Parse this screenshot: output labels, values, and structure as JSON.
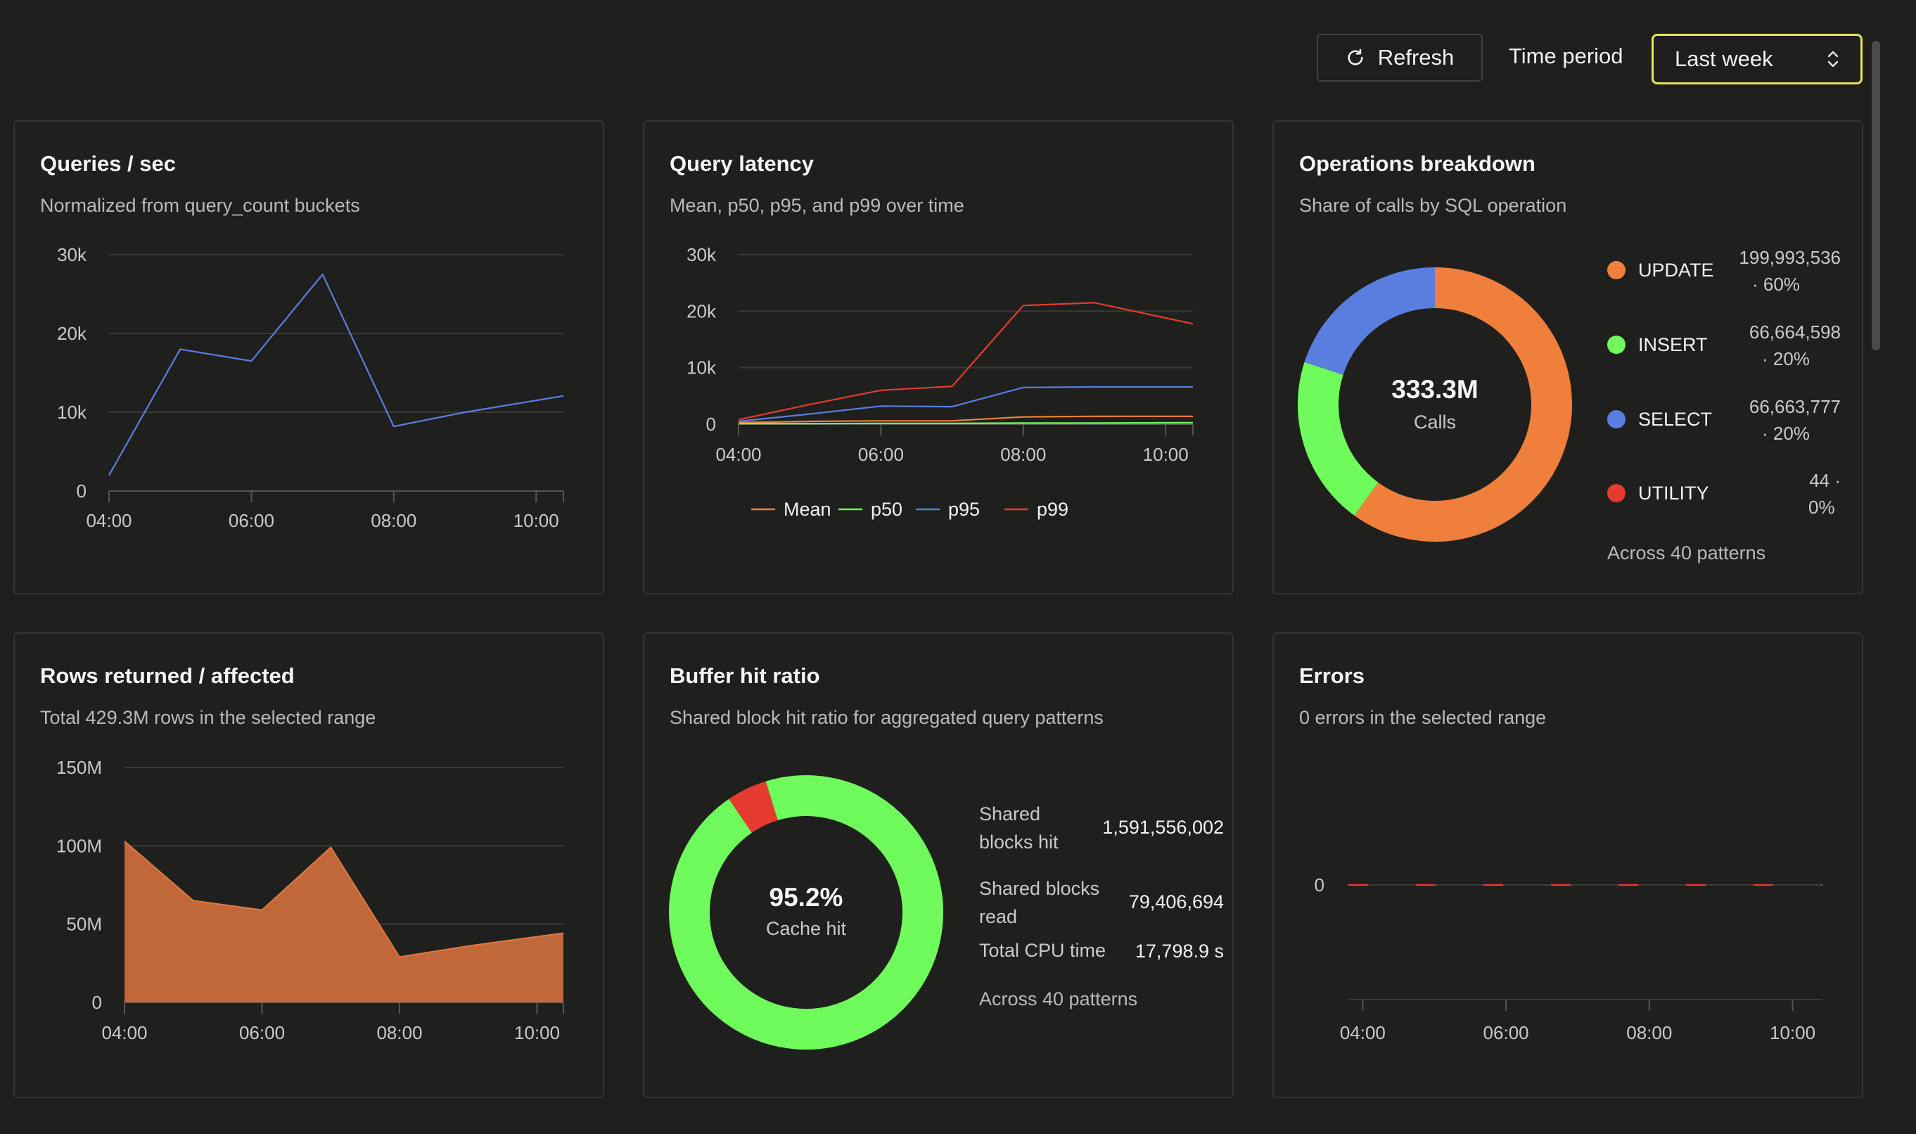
{
  "toolbar": {
    "refresh_label": "Refresh",
    "time_period_label": "Time period",
    "time_period_value": "Last week"
  },
  "colors": {
    "background": "#1e1f1c",
    "accent_focus": "#e8e25c",
    "blue": "#5a7de0",
    "orange": "#ef7f3b",
    "green": "#6ffb5b",
    "red": "#e53b2e"
  },
  "cards": {
    "queries": {
      "title": "Queries / sec",
      "subtitle": "Normalized from query_count buckets"
    },
    "latency": {
      "title": "Query latency",
      "subtitle": "Mean, p50, p95, and p99 over time"
    },
    "operations": {
      "title": "Operations breakdown",
      "subtitle": "Share of calls by SQL operation",
      "center_value": "333.3M",
      "center_label": "Calls",
      "items": [
        {
          "label": "UPDATE",
          "value_line1": "199,993,536",
          "value_line2": "· 60%",
          "color": "#ef7f3b"
        },
        {
          "label": "INSERT",
          "value_line1": "66,664,598",
          "value_line2": "· 20%",
          "color": "#6ffb5b"
        },
        {
          "label": "SELECT",
          "value_line1": "66,663,777",
          "value_line2": "· 20%",
          "color": "#5a7de0"
        },
        {
          "label": "UTILITY",
          "value_line1": "44 ·",
          "value_line2": "0%",
          "color": "#e53b2e"
        }
      ],
      "footer": "Across 40 patterns"
    },
    "rows": {
      "title": "Rows returned / affected",
      "subtitle": "Total 429.3M rows in the selected range"
    },
    "buffer": {
      "title": "Buffer hit ratio",
      "subtitle": "Shared block hit ratio for aggregated query patterns",
      "center_value": "95.2%",
      "center_label": "Cache hit",
      "stats": [
        {
          "label_line1": "Shared",
          "label_line2": "blocks hit",
          "value": "1,591,556,002"
        },
        {
          "label_line1": "Shared blocks",
          "label_line2": "read",
          "value": "79,406,694"
        },
        {
          "label_line1": "Total CPU time",
          "label_line2": "",
          "value": "17,798.9 s"
        }
      ],
      "footer": "Across 40 patterns"
    },
    "errors": {
      "title": "Errors",
      "subtitle": "0 errors in the selected range"
    }
  },
  "chart_data": [
    {
      "id": "queries",
      "type": "line",
      "x": [
        "04:00",
        "05:00",
        "06:00",
        "07:00",
        "08:00",
        "09:00",
        "10:00"
      ],
      "x_end": "10:23",
      "xticks": [
        "04:00",
        "06:00",
        "08:00",
        "10:00"
      ],
      "yticks": [
        "0",
        "10k",
        "20k",
        "30k"
      ],
      "ylim": [
        0,
        30000
      ],
      "series": [
        {
          "values": [
            2000,
            18000,
            16500,
            27500,
            8200,
            10000,
            11500
          ],
          "color": "#5a7de0"
        }
      ],
      "grid": true
    },
    {
      "id": "latency",
      "type": "line",
      "x": [
        "04:00",
        "05:00",
        "06:00",
        "07:00",
        "08:00",
        "09:00",
        "10:00"
      ],
      "x_end": "10:23",
      "xticks": [
        "04:00",
        "06:00",
        "08:00",
        "10:00"
      ],
      "yticks": [
        "0",
        "10k",
        "20k",
        "30k"
      ],
      "ylim": [
        0,
        30000
      ],
      "legend_position": "bottom",
      "series": [
        {
          "name": "Mean",
          "color": "#ef7f3b",
          "values": [
            300,
            500,
            600,
            600,
            1300,
            1400,
            1400
          ]
        },
        {
          "name": "p50",
          "color": "#6ffb5b",
          "values": [
            100,
            100,
            150,
            150,
            200,
            200,
            250
          ]
        },
        {
          "name": "p95",
          "color": "#5a7de0",
          "values": [
            500,
            1800,
            3200,
            3100,
            6500,
            6600,
            6600
          ]
        },
        {
          "name": "p99",
          "color": "#e53b2e",
          "values": [
            800,
            3500,
            6000,
            6700,
            21000,
            21500,
            18800
          ]
        }
      ],
      "grid": true
    },
    {
      "id": "operations",
      "type": "pie",
      "labels": [
        "UPDATE",
        "INSERT",
        "SELECT",
        "UTILITY"
      ],
      "values": [
        199993536,
        66664598,
        66663777,
        44
      ],
      "colors": [
        "#ef7f3b",
        "#6ffb5b",
        "#5a7de0",
        "#e53b2e"
      ]
    },
    {
      "id": "rows",
      "type": "area",
      "x": [
        "04:00",
        "05:00",
        "06:00",
        "07:00",
        "08:00",
        "09:00",
        "10:00"
      ],
      "x_end": "10:23",
      "xticks": [
        "04:00",
        "06:00",
        "08:00",
        "10:00"
      ],
      "yticks": [
        "0",
        "50M",
        "100M",
        "150M"
      ],
      "ylim": [
        0,
        150000000
      ],
      "series": [
        {
          "values": [
            103000000,
            65000000,
            59000000,
            99000000,
            29000000,
            36000000,
            42000000
          ],
          "color": "#c0683a"
        }
      ],
      "grid": true
    },
    {
      "id": "buffer",
      "type": "pie",
      "labels": [
        "Shared blocks hit",
        "Shared blocks read"
      ],
      "values": [
        1591556002,
        79406694
      ],
      "colors": [
        "#6ffb5b",
        "#e53b2e"
      ]
    },
    {
      "id": "errors",
      "type": "line",
      "x": [
        "03:48",
        "04:00",
        "05:00",
        "06:00",
        "07:00",
        "08:00",
        "09:00",
        "10:00",
        "10:25"
      ],
      "xticks": [
        "04:00",
        "06:00",
        "08:00",
        "10:00"
      ],
      "yticks": [
        "0"
      ],
      "ylim": [
        -1,
        1
      ],
      "series": [
        {
          "values": [
            0,
            0,
            0,
            0,
            0,
            0,
            0,
            0,
            0
          ],
          "color": "#e53b2e",
          "dashed": true
        }
      ],
      "grid": true
    }
  ]
}
